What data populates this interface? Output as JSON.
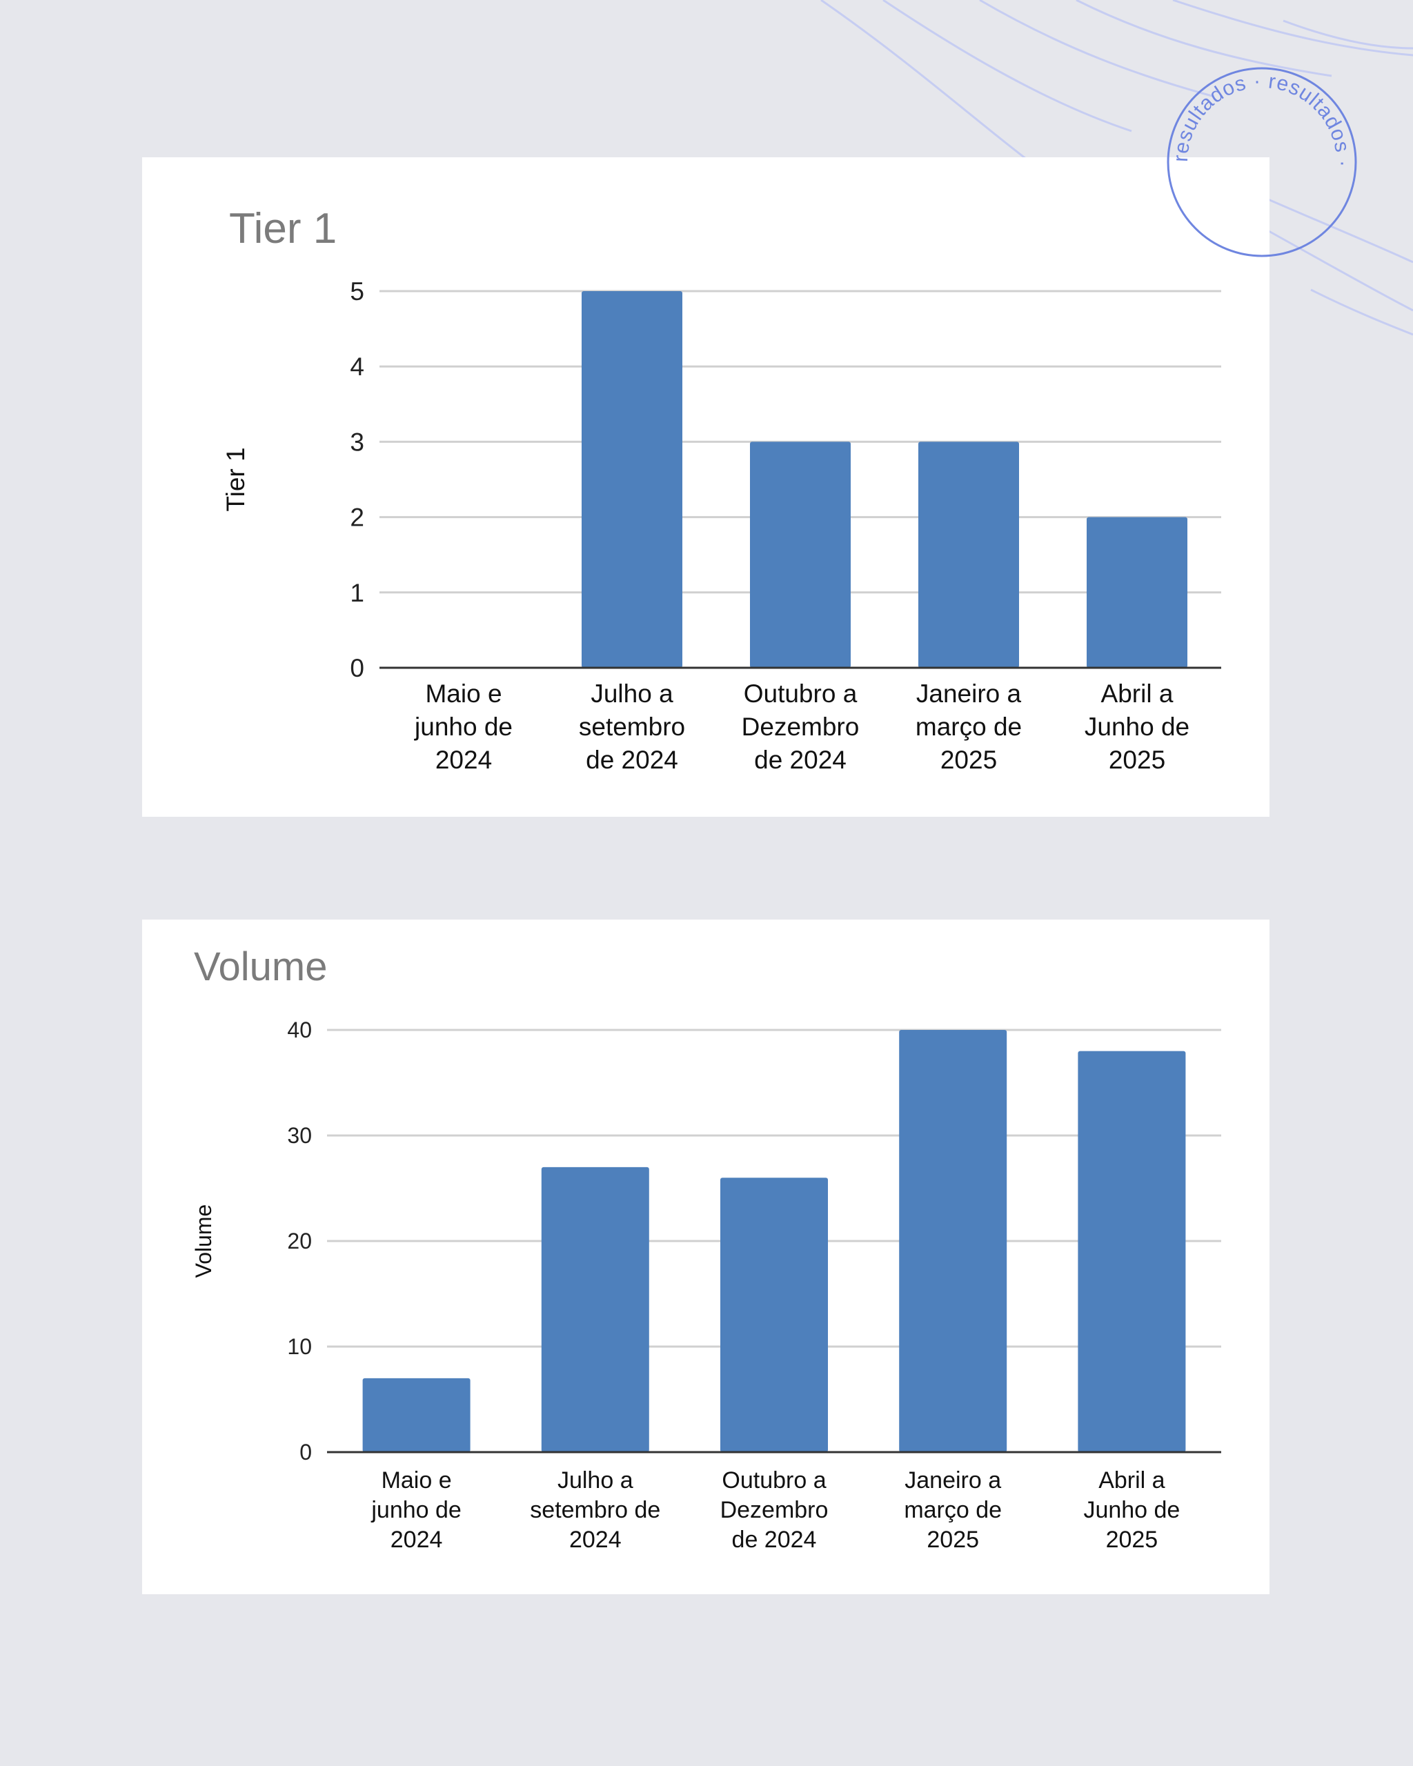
{
  "stamp": {
    "text": "resultados · resultados · ",
    "color": "#6f86e0"
  },
  "colors": {
    "bar": "#4e80bc",
    "grid": "#d0d0d0",
    "axis": "#333333",
    "background": "#e6e7ec",
    "panel": "#ffffff"
  },
  "chart_data": [
    {
      "type": "bar",
      "title": "Tier 1",
      "ylabel": "Tier 1",
      "xlabel": "",
      "ylim": [
        0,
        5
      ],
      "yticks": [
        0,
        1,
        2,
        3,
        4,
        5
      ],
      "grid": true,
      "legend": "none",
      "categories": [
        [
          "Maio e",
          "junho de",
          "2024"
        ],
        [
          "Julho a",
          "setembro",
          "de 2024"
        ],
        [
          "Outubro a",
          "Dezembro",
          "de 2024"
        ],
        [
          "Janeiro a",
          "março de",
          "2025"
        ],
        [
          "Abril a",
          "Junho de",
          "2025"
        ]
      ],
      "values": [
        0,
        5,
        3,
        3,
        2
      ]
    },
    {
      "type": "bar",
      "title": "Volume",
      "ylabel": "Volume",
      "xlabel": "",
      "ylim": [
        0,
        40
      ],
      "yticks": [
        0,
        10,
        20,
        30,
        40
      ],
      "grid": true,
      "legend": "none",
      "categories": [
        [
          "Maio e",
          "junho de",
          "2024"
        ],
        [
          "Julho a",
          "setembro de",
          "2024"
        ],
        [
          "Outubro a",
          "Dezembro",
          "de 2024"
        ],
        [
          "Janeiro a",
          "março de",
          "2025"
        ],
        [
          "Abril a",
          "Junho de",
          "2025"
        ]
      ],
      "values": [
        7,
        27,
        26,
        40,
        38
      ]
    }
  ]
}
